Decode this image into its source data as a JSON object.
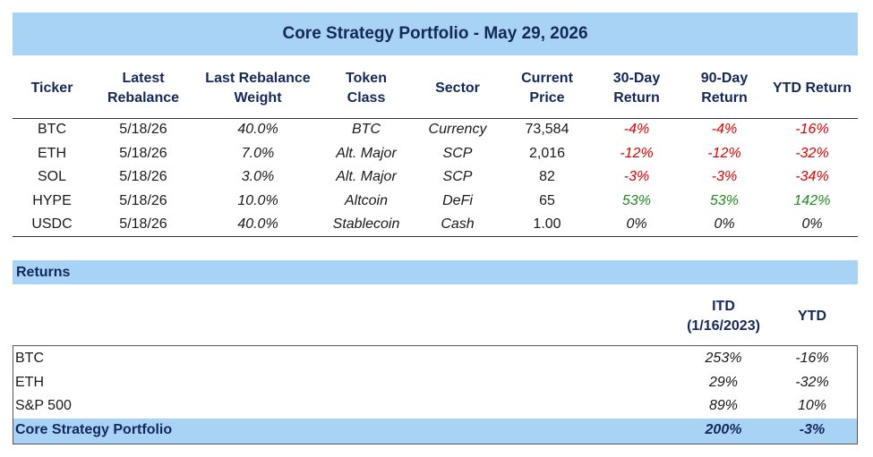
{
  "header": {
    "title": "Core Strategy Portfolio - May 29, 2026"
  },
  "holdings": {
    "columns": [
      "Ticker",
      "Latest Rebalance",
      "Last Rebalance Weight",
      "Token Class",
      "Sector",
      "Current Price",
      "30-Day Return",
      "90-Day Return",
      "YTD Return"
    ],
    "rows": [
      [
        "BTC",
        "5/18/26",
        "40.0%",
        "BTC",
        "Currency",
        "73,584",
        "-4%",
        "-4%",
        "-16%"
      ],
      [
        "ETH",
        "5/18/26",
        "7.0%",
        "Alt. Major",
        "SCP",
        "2,016",
        "-12%",
        "-12%",
        "-32%"
      ],
      [
        "SOL",
        "5/18/26",
        "3.0%",
        "Alt. Major",
        "SCP",
        "82",
        "-3%",
        "-3%",
        "-34%"
      ],
      [
        "HYPE",
        "5/18/26",
        "10.0%",
        "Altcoin",
        "DeFi",
        "65",
        "53%",
        "53%",
        "142%"
      ],
      [
        "USDC",
        "5/18/26",
        "40.0%",
        "Stablecoin",
        "Cash",
        "1.00",
        "0%",
        "0%",
        "0%"
      ]
    ]
  },
  "returns": {
    "title": "Returns",
    "columns": [
      "ITD (1/16/2023)",
      "YTD"
    ],
    "rows": [
      [
        "BTC",
        "253%",
        "-16%"
      ],
      [
        "ETH",
        "29%",
        "-32%"
      ],
      [
        "S&P 500",
        "89%",
        "10%"
      ],
      [
        "Core Strategy Portfolio",
        "200%",
        "-3%"
      ]
    ]
  }
}
